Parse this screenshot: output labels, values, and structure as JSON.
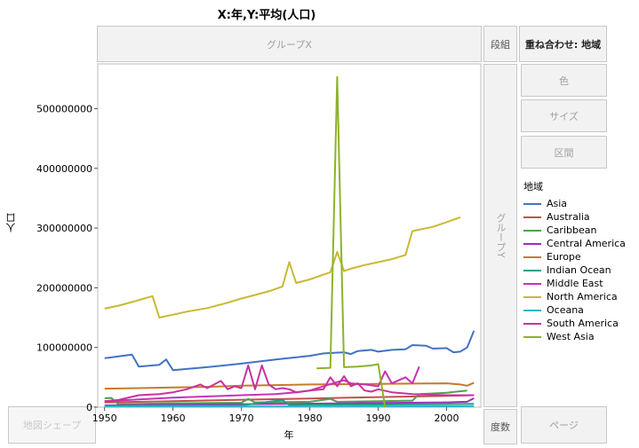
{
  "title": "X:年,Y:平均(人口)",
  "zones": {
    "group_x": "グループX",
    "wrap": "段組",
    "overlay": "重ね合わせ: 地域",
    "color": "色",
    "size": "サイズ",
    "interval": "区間",
    "group_y": "グループY",
    "map_shape": "地図シェープ",
    "freq": "度数",
    "page": "ページ"
  },
  "legend_title": "地域",
  "chart_data": {
    "type": "line",
    "title": "X:年,Y:平均(人口)",
    "xlabel": "年",
    "ylabel": "人口",
    "xlim": [
      1949,
      2005
    ],
    "ylim": [
      0,
      575000000
    ],
    "x_ticks": [
      "1950",
      "1960",
      "1970",
      "1980",
      "1990",
      "2000"
    ],
    "y_ticks": [
      "0",
      "100000000",
      "200000000",
      "300000000",
      "400000000",
      "500000000"
    ],
    "legend_position": "right",
    "grid": false,
    "series": [
      {
        "name": "Asia",
        "color": "#4472C4",
        "points": [
          [
            1950,
            82000000
          ],
          [
            1952,
            85000000
          ],
          [
            1954,
            88000000
          ],
          [
            1955,
            68000000
          ],
          [
            1958,
            71000000
          ],
          [
            1959,
            80000000
          ],
          [
            1960,
            62000000
          ],
          [
            1965,
            67000000
          ],
          [
            1970,
            73000000
          ],
          [
            1975,
            80000000
          ],
          [
            1980,
            86000000
          ],
          [
            1982,
            90000000
          ],
          [
            1985,
            92000000
          ],
          [
            1986,
            89000000
          ],
          [
            1987,
            94000000
          ],
          [
            1989,
            96000000
          ],
          [
            1990,
            93000000
          ],
          [
            1992,
            96000000
          ],
          [
            1994,
            97000000
          ],
          [
            1995,
            104000000
          ],
          [
            1997,
            103000000
          ],
          [
            1998,
            98000000
          ],
          [
            2000,
            99000000
          ],
          [
            2001,
            92000000
          ],
          [
            2002,
            93000000
          ],
          [
            2003,
            100000000
          ],
          [
            2004,
            128000000
          ]
        ]
      },
      {
        "name": "Australia",
        "color": "#C0504D",
        "points": [
          [
            1950,
            8000000
          ],
          [
            1960,
            10000000
          ],
          [
            1970,
            12500000
          ],
          [
            1980,
            14500000
          ],
          [
            1990,
            17000000
          ],
          [
            2000,
            19000000
          ],
          [
            2004,
            20000000
          ]
        ]
      },
      {
        "name": "Caribbean",
        "color": "#4EA04E",
        "points": [
          [
            1950,
            15000000
          ],
          [
            1951,
            15500000
          ],
          [
            1952,
            5000000
          ],
          [
            1960,
            6500000
          ],
          [
            1970,
            7500000
          ],
          [
            1971,
            14000000
          ],
          [
            1972,
            8000000
          ],
          [
            1980,
            9000000
          ],
          [
            1983,
            14000000
          ],
          [
            1984,
            9000000
          ],
          [
            1990,
            10000000
          ],
          [
            1995,
            11000000
          ],
          [
            1996,
            22000000
          ],
          [
            2000,
            24000000
          ],
          [
            2003,
            28000000
          ]
        ]
      },
      {
        "name": "Central America",
        "color": "#9C2EC0",
        "points": [
          [
            1950,
            3000000
          ],
          [
            1960,
            4000000
          ],
          [
            1970,
            5000000
          ],
          [
            1980,
            6000000
          ],
          [
            1990,
            7000000
          ],
          [
            2000,
            8000000
          ],
          [
            2003,
            9000000
          ],
          [
            2004,
            15000000
          ]
        ]
      },
      {
        "name": "Europe",
        "color": "#C87A2A",
        "points": [
          [
            1950,
            31000000
          ],
          [
            1955,
            32000000
          ],
          [
            1960,
            33000000
          ],
          [
            1965,
            34000000
          ],
          [
            1970,
            36000000
          ],
          [
            1975,
            37000000
          ],
          [
            1980,
            38000000
          ],
          [
            1985,
            38500000
          ],
          [
            1990,
            39000000
          ],
          [
            1995,
            39500000
          ],
          [
            2000,
            40000000
          ],
          [
            2002,
            38000000
          ],
          [
            2003,
            36000000
          ],
          [
            2004,
            41000000
          ]
        ]
      },
      {
        "name": "Indian Ocean",
        "color": "#1E9E8A",
        "points": [
          [
            1950,
            2000000
          ],
          [
            1960,
            2500000
          ],
          [
            1970,
            3000000
          ],
          [
            1976,
            12000000
          ],
          [
            1977,
            3500000
          ],
          [
            1980,
            4000000
          ],
          [
            1990,
            4500000
          ],
          [
            2000,
            5000000
          ],
          [
            2004,
            5500000
          ]
        ]
      },
      {
        "name": "Middle East",
        "color": "#C831B8",
        "points": [
          [
            1950,
            10000000
          ],
          [
            1955,
            13000000
          ],
          [
            1960,
            16000000
          ],
          [
            1965,
            18000000
          ],
          [
            1970,
            20000000
          ],
          [
            1975,
            22000000
          ],
          [
            1978,
            25000000
          ],
          [
            1980,
            28000000
          ],
          [
            1982,
            35000000
          ],
          [
            1984,
            42000000
          ],
          [
            1985,
            45000000
          ],
          [
            1986,
            40000000
          ],
          [
            1988,
            38000000
          ],
          [
            1990,
            35000000
          ],
          [
            1991,
            60000000
          ],
          [
            1992,
            40000000
          ],
          [
            1993,
            45000000
          ],
          [
            1994,
            50000000
          ],
          [
            1995,
            40000000
          ],
          [
            1996,
            68000000
          ]
        ]
      },
      {
        "name": "North America",
        "color": "#C8B932",
        "points": [
          [
            1950,
            165000000
          ],
          [
            1952,
            170000000
          ],
          [
            1954,
            176000000
          ],
          [
            1957,
            186000000
          ],
          [
            1958,
            150000000
          ],
          [
            1960,
            155000000
          ],
          [
            1962,
            160000000
          ],
          [
            1965,
            166000000
          ],
          [
            1968,
            175000000
          ],
          [
            1970,
            182000000
          ],
          [
            1972,
            188000000
          ],
          [
            1974,
            194000000
          ],
          [
            1976,
            202000000
          ],
          [
            1977,
            243000000
          ],
          [
            1978,
            208000000
          ],
          [
            1980,
            214000000
          ],
          [
            1982,
            222000000
          ],
          [
            1983,
            226000000
          ],
          [
            1984,
            260000000
          ],
          [
            1985,
            228000000
          ],
          [
            1986,
            232000000
          ],
          [
            1988,
            238000000
          ],
          [
            1990,
            243000000
          ],
          [
            1992,
            248000000
          ],
          [
            1994,
            255000000
          ],
          [
            1995,
            295000000
          ],
          [
            1998,
            302000000
          ],
          [
            2000,
            310000000
          ],
          [
            2002,
            318000000
          ]
        ]
      },
      {
        "name": "Oceana",
        "color": "#2CB5C8",
        "points": [
          [
            1950,
            1000000
          ],
          [
            1970,
            1200000
          ],
          [
            1990,
            1400000
          ],
          [
            2004,
            1600000
          ]
        ]
      },
      {
        "name": "South America",
        "color": "#C8329E",
        "points": [
          [
            1950,
            10000000
          ],
          [
            1952,
            12000000
          ],
          [
            1955,
            20000000
          ],
          [
            1958,
            22000000
          ],
          [
            1960,
            25000000
          ],
          [
            1962,
            30000000
          ],
          [
            1964,
            38000000
          ],
          [
            1965,
            32000000
          ],
          [
            1967,
            44000000
          ],
          [
            1968,
            30000000
          ],
          [
            1969,
            35000000
          ],
          [
            1970,
            32000000
          ],
          [
            1971,
            70000000
          ],
          [
            1972,
            30000000
          ],
          [
            1973,
            70000000
          ],
          [
            1974,
            38000000
          ],
          [
            1975,
            30000000
          ],
          [
            1976,
            32000000
          ],
          [
            1977,
            30000000
          ],
          [
            1978,
            25000000
          ],
          [
            1980,
            28000000
          ],
          [
            1982,
            30000000
          ],
          [
            1983,
            50000000
          ],
          [
            1984,
            35000000
          ],
          [
            1985,
            52000000
          ],
          [
            1986,
            35000000
          ],
          [
            1987,
            40000000
          ],
          [
            1988,
            28000000
          ],
          [
            1989,
            26000000
          ],
          [
            1990,
            30000000
          ],
          [
            1992,
            25000000
          ],
          [
            1995,
            22000000
          ],
          [
            2000,
            20000000
          ],
          [
            2004,
            20000000
          ]
        ]
      },
      {
        "name": "West Asia",
        "color": "#8DB32B",
        "points": [
          [
            1981,
            65000000
          ],
          [
            1983,
            66000000
          ],
          [
            1984,
            553000000
          ],
          [
            1985,
            67000000
          ],
          [
            1987,
            68000000
          ],
          [
            1989,
            70000000
          ],
          [
            1990,
            72000000
          ],
          [
            1991,
            0
          ]
        ]
      }
    ]
  }
}
